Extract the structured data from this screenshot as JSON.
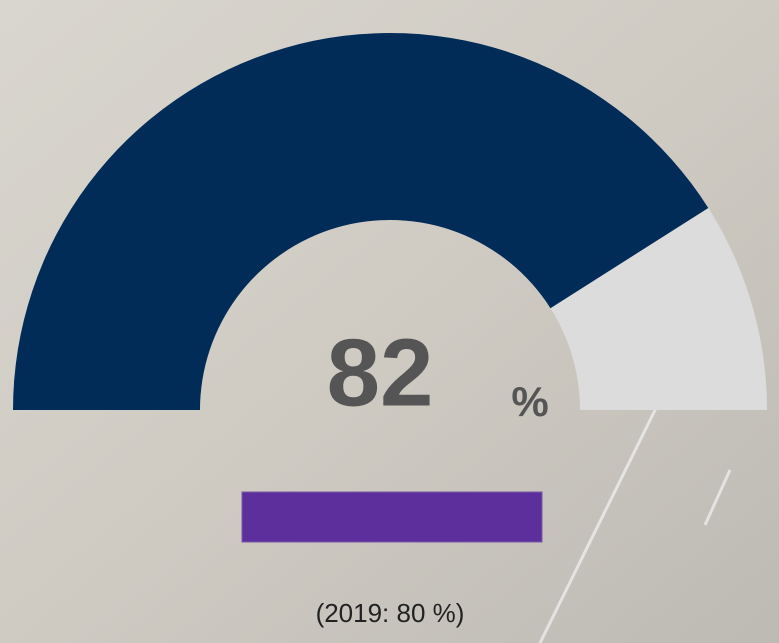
{
  "chart_data": {
    "type": "gauge",
    "value": 82,
    "unit": "%",
    "ylim": [
      0,
      100
    ],
    "color": "#002c57",
    "track_color": "#dcdcdc",
    "note": "(2019: 80 %)"
  }
}
